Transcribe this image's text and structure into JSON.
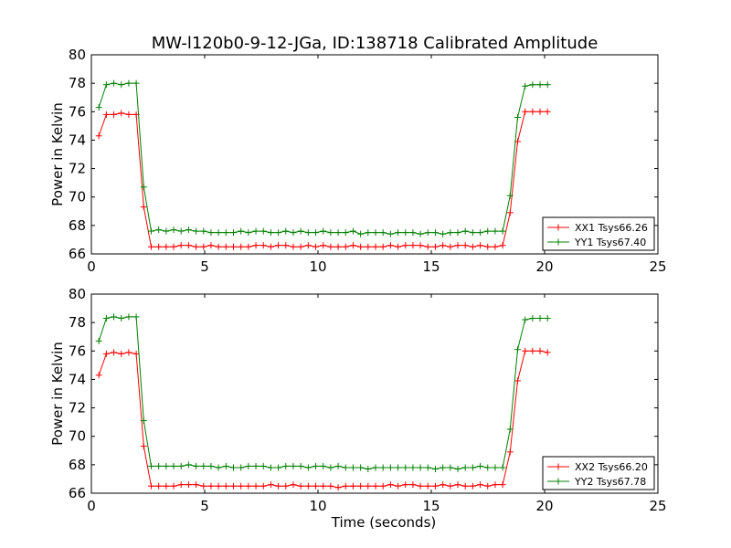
{
  "figure_title": "MW-l120b0-9-12-JGa, ID:138718 Calibrated Amplitude",
  "chart_data": [
    {
      "type": "line",
      "title": "MW-l120b0-9-12-JGa, ID:138718 Calibrated Amplitude",
      "xlabel": "",
      "ylabel": "Power in Kelvin",
      "xlim": [
        0,
        25
      ],
      "ylim": [
        66,
        80
      ],
      "xticks": [
        0,
        5,
        10,
        15,
        20,
        25
      ],
      "yticks": [
        66,
        68,
        70,
        72,
        74,
        76,
        78,
        80
      ],
      "grid": false,
      "legend": "lower-right",
      "x": [
        0.33,
        0.66,
        0.99,
        1.32,
        1.65,
        1.98,
        2.31,
        2.64,
        2.97,
        3.3,
        3.63,
        3.96,
        4.29,
        4.62,
        4.95,
        5.28,
        5.61,
        5.94,
        6.27,
        6.6,
        6.93,
        7.26,
        7.59,
        7.92,
        8.25,
        8.58,
        8.91,
        9.24,
        9.57,
        9.9,
        10.23,
        10.56,
        10.89,
        11.22,
        11.55,
        11.88,
        12.21,
        12.54,
        12.87,
        13.2,
        13.53,
        13.86,
        14.19,
        14.52,
        14.85,
        15.18,
        15.51,
        15.84,
        16.17,
        16.5,
        16.83,
        17.16,
        17.49,
        17.82,
        18.15,
        18.48,
        18.81,
        19.14,
        19.47,
        19.8,
        20.13
      ],
      "series": [
        {
          "name": "XX1 Tsys66.26",
          "color": "#ff0000",
          "values": [
            74.3,
            75.8,
            75.8,
            75.9,
            75.8,
            75.8,
            69.3,
            66.5,
            66.5,
            66.5,
            66.5,
            66.6,
            66.6,
            66.5,
            66.5,
            66.6,
            66.5,
            66.5,
            66.5,
            66.5,
            66.5,
            66.6,
            66.6,
            66.5,
            66.6,
            66.6,
            66.5,
            66.5,
            66.6,
            66.5,
            66.6,
            66.5,
            66.5,
            66.5,
            66.6,
            66.5,
            66.5,
            66.5,
            66.5,
            66.6,
            66.5,
            66.6,
            66.6,
            66.6,
            66.5,
            66.5,
            66.6,
            66.5,
            66.6,
            66.6,
            66.5,
            66.6,
            66.5,
            66.5,
            66.6,
            68.9,
            73.9,
            76.0,
            76.0,
            76.0,
            76.0
          ]
        },
        {
          "name": "YY1 Tsys67.40",
          "color": "#008000",
          "values": [
            76.3,
            77.9,
            78.0,
            77.9,
            78.0,
            78.0,
            70.7,
            67.6,
            67.7,
            67.6,
            67.7,
            67.6,
            67.7,
            67.6,
            67.6,
            67.5,
            67.5,
            67.5,
            67.5,
            67.6,
            67.5,
            67.6,
            67.6,
            67.5,
            67.5,
            67.6,
            67.5,
            67.6,
            67.5,
            67.5,
            67.6,
            67.5,
            67.5,
            67.5,
            67.6,
            67.4,
            67.5,
            67.5,
            67.5,
            67.4,
            67.5,
            67.5,
            67.5,
            67.4,
            67.5,
            67.5,
            67.4,
            67.5,
            67.5,
            67.6,
            67.5,
            67.5,
            67.6,
            67.6,
            67.6,
            70.1,
            75.6,
            77.8,
            77.9,
            77.9,
            77.9
          ]
        }
      ]
    },
    {
      "type": "line",
      "title": "",
      "xlabel": "Time (seconds)",
      "ylabel": "Power in Kelvin",
      "xlim": [
        0,
        25
      ],
      "ylim": [
        66,
        80
      ],
      "xticks": [
        0,
        5,
        10,
        15,
        20,
        25
      ],
      "yticks": [
        66,
        68,
        70,
        72,
        74,
        76,
        78,
        80
      ],
      "grid": false,
      "legend": "lower-right",
      "x": [
        0.33,
        0.66,
        0.99,
        1.32,
        1.65,
        1.98,
        2.31,
        2.64,
        2.97,
        3.3,
        3.63,
        3.96,
        4.29,
        4.62,
        4.95,
        5.28,
        5.61,
        5.94,
        6.27,
        6.6,
        6.93,
        7.26,
        7.59,
        7.92,
        8.25,
        8.58,
        8.91,
        9.24,
        9.57,
        9.9,
        10.23,
        10.56,
        10.89,
        11.22,
        11.55,
        11.88,
        12.21,
        12.54,
        12.87,
        13.2,
        13.53,
        13.86,
        14.19,
        14.52,
        14.85,
        15.18,
        15.51,
        15.84,
        16.17,
        16.5,
        16.83,
        17.16,
        17.49,
        17.82,
        18.15,
        18.48,
        18.81,
        19.14,
        19.47,
        19.8,
        20.13
      ],
      "series": [
        {
          "name": "XX2 Tsys66.20",
          "color": "#ff0000",
          "values": [
            74.3,
            75.8,
            75.9,
            75.8,
            75.9,
            75.8,
            69.3,
            66.5,
            66.5,
            66.5,
            66.5,
            66.6,
            66.6,
            66.6,
            66.5,
            66.5,
            66.5,
            66.5,
            66.5,
            66.5,
            66.5,
            66.5,
            66.5,
            66.6,
            66.5,
            66.5,
            66.6,
            66.5,
            66.5,
            66.5,
            66.5,
            66.5,
            66.4,
            66.5,
            66.5,
            66.5,
            66.5,
            66.5,
            66.5,
            66.6,
            66.5,
            66.6,
            66.6,
            66.5,
            66.5,
            66.5,
            66.6,
            66.5,
            66.6,
            66.5,
            66.5,
            66.6,
            66.5,
            66.6,
            66.6,
            68.9,
            73.9,
            76.0,
            76.0,
            76.0,
            75.9
          ]
        },
        {
          "name": "YY2 Tsys67.78",
          "color": "#008000",
          "values": [
            76.7,
            78.3,
            78.4,
            78.3,
            78.4,
            78.4,
            71.1,
            67.9,
            67.9,
            67.9,
            67.9,
            67.9,
            68.0,
            67.9,
            67.9,
            67.9,
            67.8,
            67.9,
            67.8,
            67.8,
            67.9,
            67.9,
            67.9,
            67.8,
            67.8,
            67.9,
            67.9,
            67.9,
            67.8,
            67.9,
            67.9,
            67.8,
            67.9,
            67.8,
            67.8,
            67.8,
            67.7,
            67.8,
            67.8,
            67.8,
            67.8,
            67.8,
            67.8,
            67.8,
            67.8,
            67.7,
            67.8,
            67.8,
            67.7,
            67.8,
            67.8,
            67.9,
            67.8,
            67.8,
            67.8,
            70.5,
            76.1,
            78.2,
            78.3,
            78.3,
            78.3
          ]
        }
      ]
    }
  ]
}
